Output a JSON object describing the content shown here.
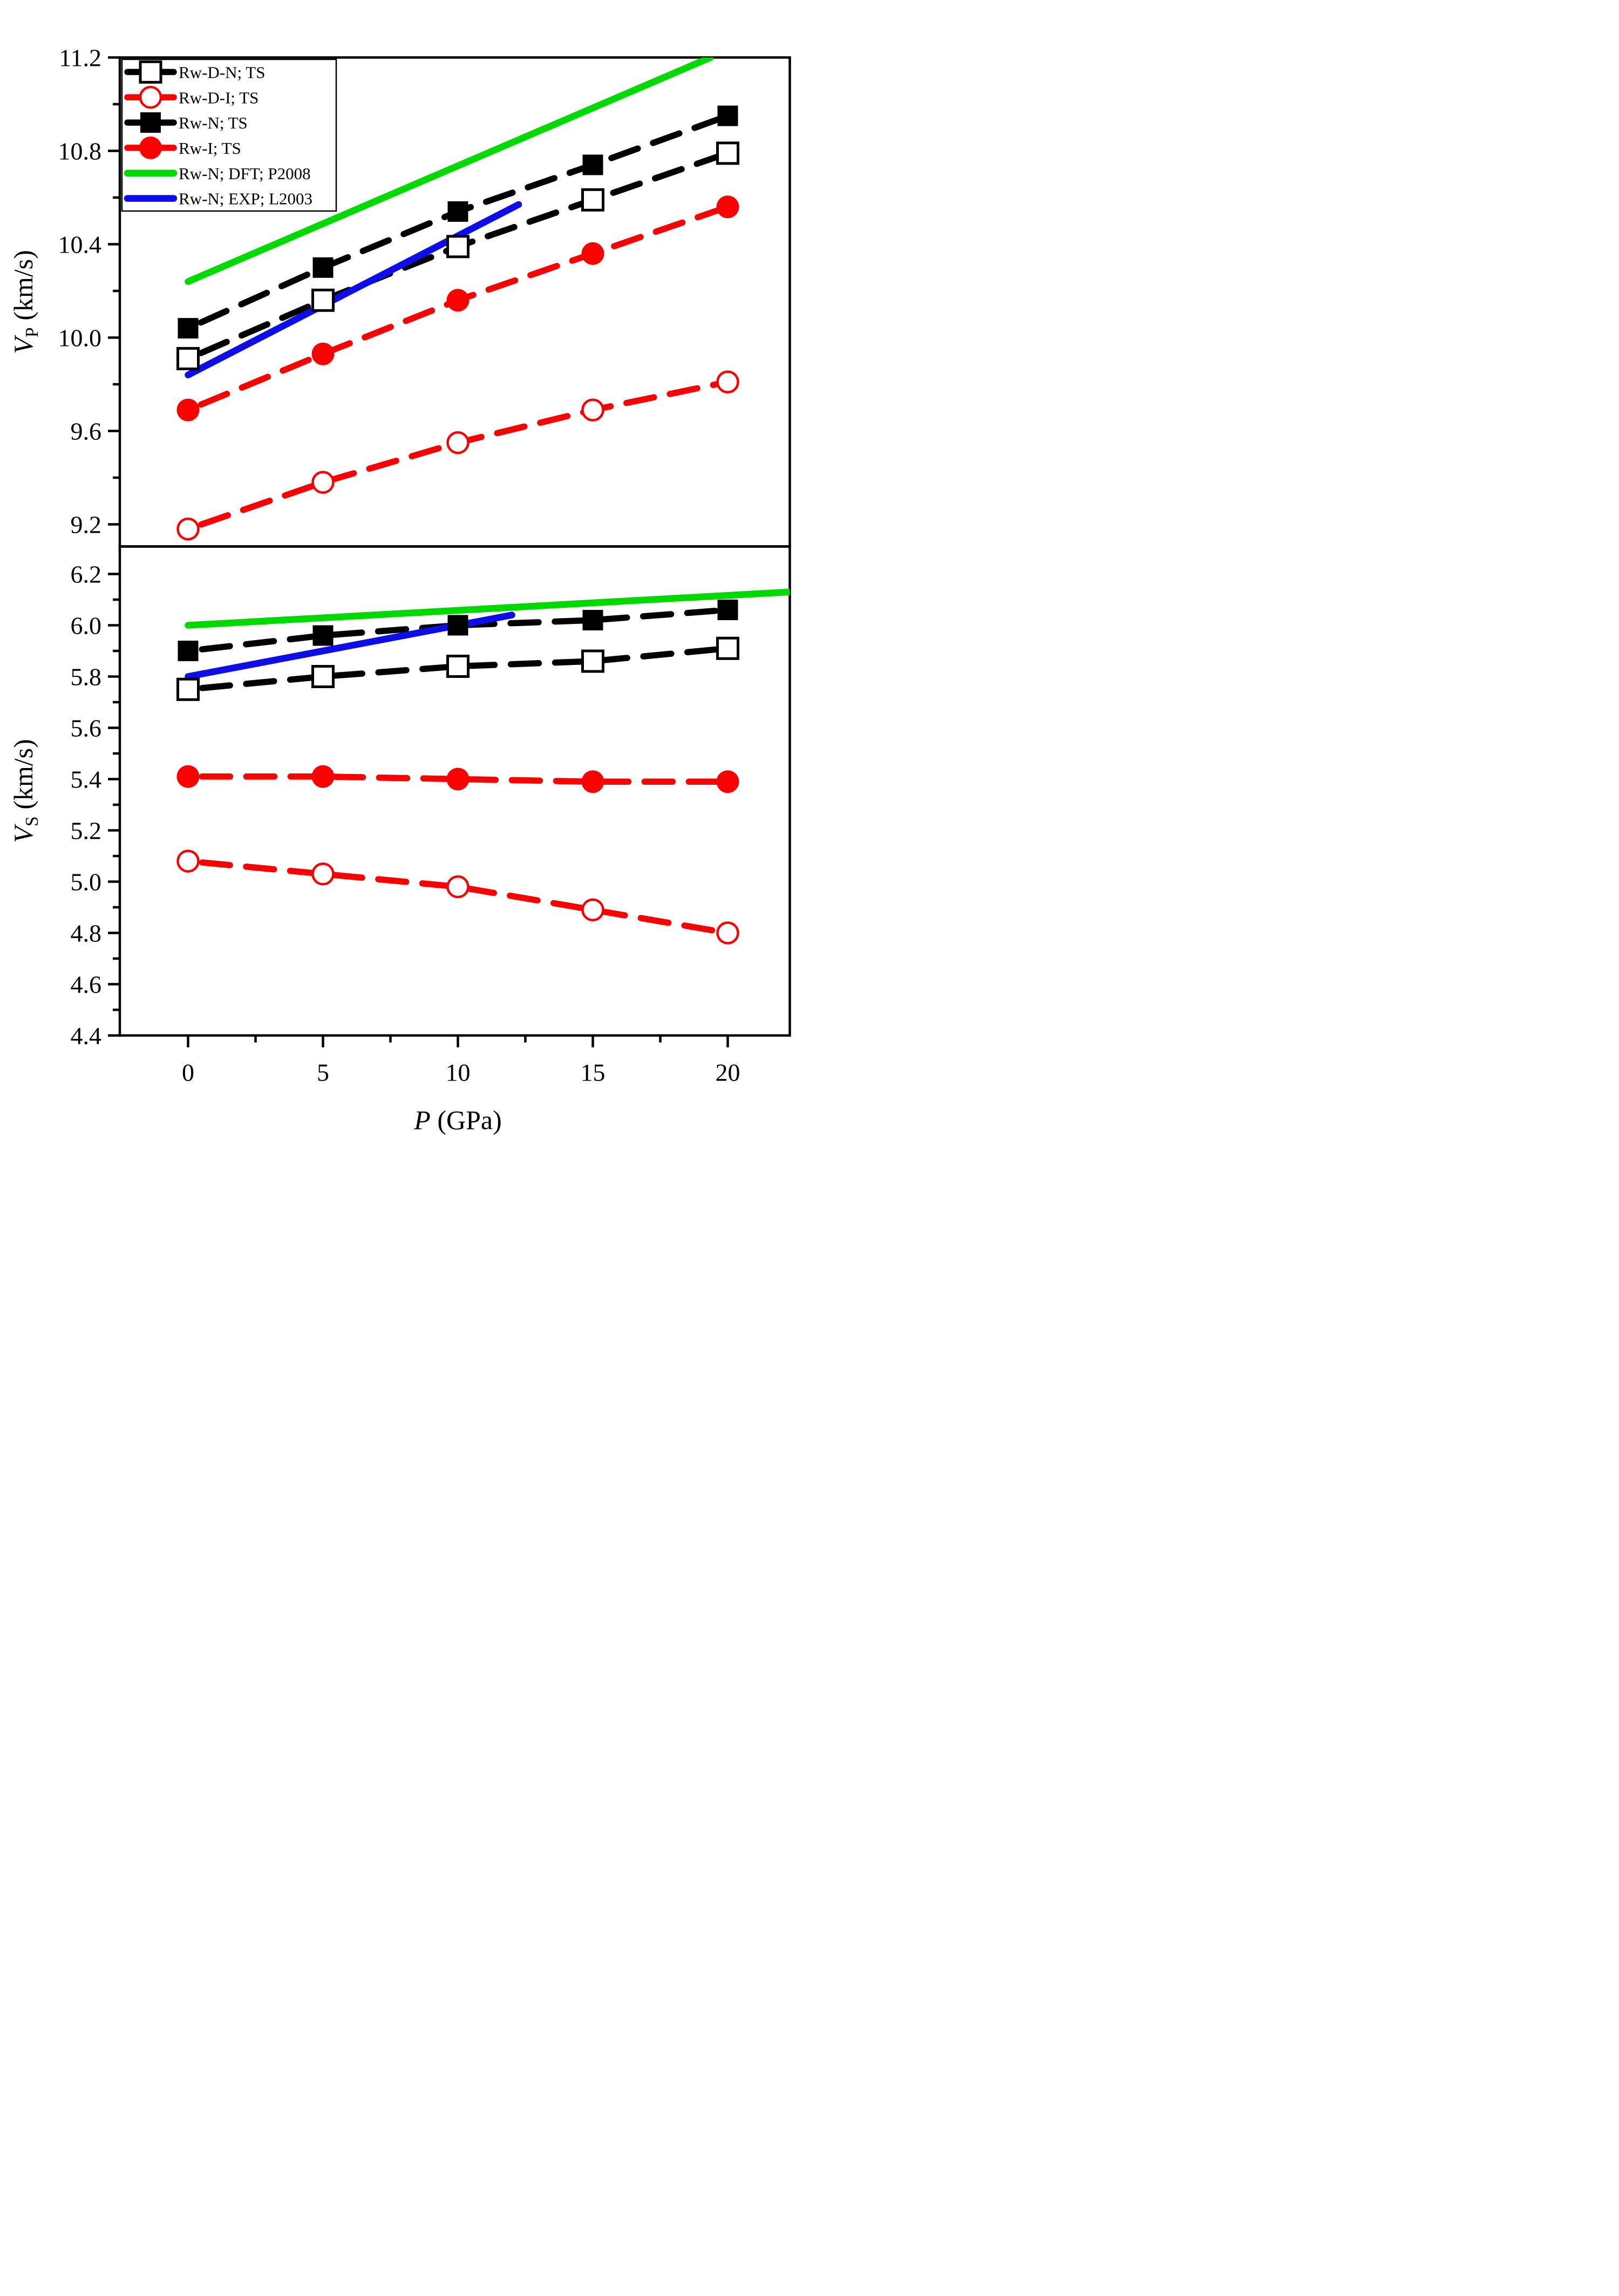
{
  "figure": {
    "type": "two-panel line+scatter chart",
    "x_axis": {
      "label_main": "P",
      "label_unit": " (GPa)",
      "xlim": [
        -2.53,
        22.3
      ],
      "ticks_major": [
        0,
        5,
        10,
        15,
        20
      ],
      "tick_labels": [
        "0",
        "5",
        "10",
        "15",
        "20"
      ],
      "ticks_minor": [
        2.5,
        7.5,
        12.5,
        17.5
      ]
    },
    "top_panel": {
      "ylabel_main": "V",
      "ylabel_sub": "P",
      "ylabel_unit": " (km/s)",
      "ylim": [
        9.105,
        11.2
      ],
      "ticks_major": [
        11.2,
        10.8,
        10.4,
        10.0,
        9.6,
        9.2
      ],
      "tick_labels": [
        "11.2",
        "10.8",
        "10.4",
        "10.0",
        "9.6",
        "9.2"
      ],
      "ticks_minor": [
        11.0,
        10.6,
        10.2,
        9.8,
        9.4
      ]
    },
    "bottom_panel": {
      "ylabel_main": "V",
      "ylabel_sub": "S",
      "ylabel_unit": " (km/s)",
      "ylim": [
        4.4,
        6.307
      ],
      "ticks_major": [
        6.2,
        6.0,
        5.8,
        5.6,
        5.4,
        5.2,
        5.0,
        4.8,
        4.6,
        4.4
      ],
      "tick_labels": [
        "6.2",
        "6.0",
        "5.8",
        "5.6",
        "5.4",
        "5.2",
        "5.0",
        "4.8",
        "4.6",
        "4.4"
      ],
      "ticks_minor": [
        6.1,
        5.9,
        5.7,
        5.5,
        5.3,
        5.1,
        4.9,
        4.7,
        4.5
      ]
    }
  },
  "colors": {
    "black": "#000000",
    "red": "#fa0000",
    "green": "#00d900",
    "blue": "#0d0de8",
    "background": "#ffffff"
  },
  "legend": {
    "entries": [
      {
        "label": "Rw-D-N; TS",
        "marker": "square-open",
        "color": "black",
        "line": "dashed"
      },
      {
        "label": "Rw-D-I; TS",
        "marker": "circle-open",
        "color": "red",
        "line": "dashed"
      },
      {
        "label": "Rw-N; TS",
        "marker": "square-filled",
        "color": "black",
        "line": "dashed"
      },
      {
        "label": "Rw-I; TS",
        "marker": "circle-filled",
        "color": "red",
        "line": "dashed"
      },
      {
        "label": "Rw-N; DFT; P2008",
        "marker": "none",
        "color": "green",
        "line": "solid"
      },
      {
        "label": "Rw-N; EXP; L2003",
        "marker": "none",
        "color": "blue",
        "line": "solid"
      }
    ]
  },
  "chart_data": [
    {
      "panel": "top",
      "type": "scatter+line",
      "ylabel": "V_P (km/s)",
      "xlabel": "P (GPa)",
      "x": [
        0,
        5,
        10,
        15,
        20
      ],
      "series": [
        {
          "name": "Rw-D-N; TS",
          "marker": "square-open",
          "color": "black",
          "values": [
            9.91,
            10.16,
            10.39,
            10.59,
            10.79
          ]
        },
        {
          "name": "Rw-D-I; TS",
          "marker": "circle-open",
          "color": "red",
          "values": [
            9.18,
            9.38,
            9.55,
            9.69,
            9.81
          ]
        },
        {
          "name": "Rw-N; TS",
          "marker": "square-filled",
          "color": "black",
          "values": [
            10.04,
            10.3,
            10.54,
            10.74,
            10.95
          ]
        },
        {
          "name": "Rw-I; TS",
          "marker": "circle-filled",
          "color": "red",
          "values": [
            9.69,
            9.93,
            10.16,
            10.36,
            10.56
          ]
        }
      ],
      "lines": [
        {
          "name": "Rw-N; DFT; P2008",
          "color": "green",
          "x": [
            0,
            19.36
          ],
          "y": [
            10.24,
            11.2
          ],
          "clipped_at_top": true
        },
        {
          "name": "Rw-N; EXP; L2003",
          "color": "blue",
          "x": [
            0,
            12.25
          ],
          "y": [
            9.84,
            10.57
          ]
        }
      ]
    },
    {
      "panel": "bottom",
      "type": "scatter+line",
      "ylabel": "V_S (km/s)",
      "xlabel": "P (GPa)",
      "x": [
        0,
        5,
        10,
        15,
        20
      ],
      "series": [
        {
          "name": "Rw-D-N; TS",
          "marker": "square-open",
          "color": "black",
          "values": [
            5.75,
            5.8,
            5.84,
            5.86,
            5.91
          ]
        },
        {
          "name": "Rw-D-I; TS",
          "marker": "circle-open",
          "color": "red",
          "values": [
            5.08,
            5.03,
            4.98,
            4.89,
            4.8
          ]
        },
        {
          "name": "Rw-N; TS",
          "marker": "square-filled",
          "color": "black",
          "values": [
            5.9,
            5.96,
            6.0,
            6.02,
            6.06
          ]
        },
        {
          "name": "Rw-I; TS",
          "marker": "circle-filled",
          "color": "red",
          "values": [
            5.41,
            5.41,
            5.4,
            5.39,
            5.39
          ]
        }
      ],
      "lines": [
        {
          "name": "Rw-N; DFT; P2008",
          "color": "green",
          "x": [
            0,
            22.3
          ],
          "y": [
            6.0,
            6.13
          ]
        },
        {
          "name": "Rw-N; EXP; L2003",
          "color": "blue",
          "x": [
            0,
            12.0
          ],
          "y": [
            5.8,
            6.04
          ]
        }
      ]
    }
  ]
}
